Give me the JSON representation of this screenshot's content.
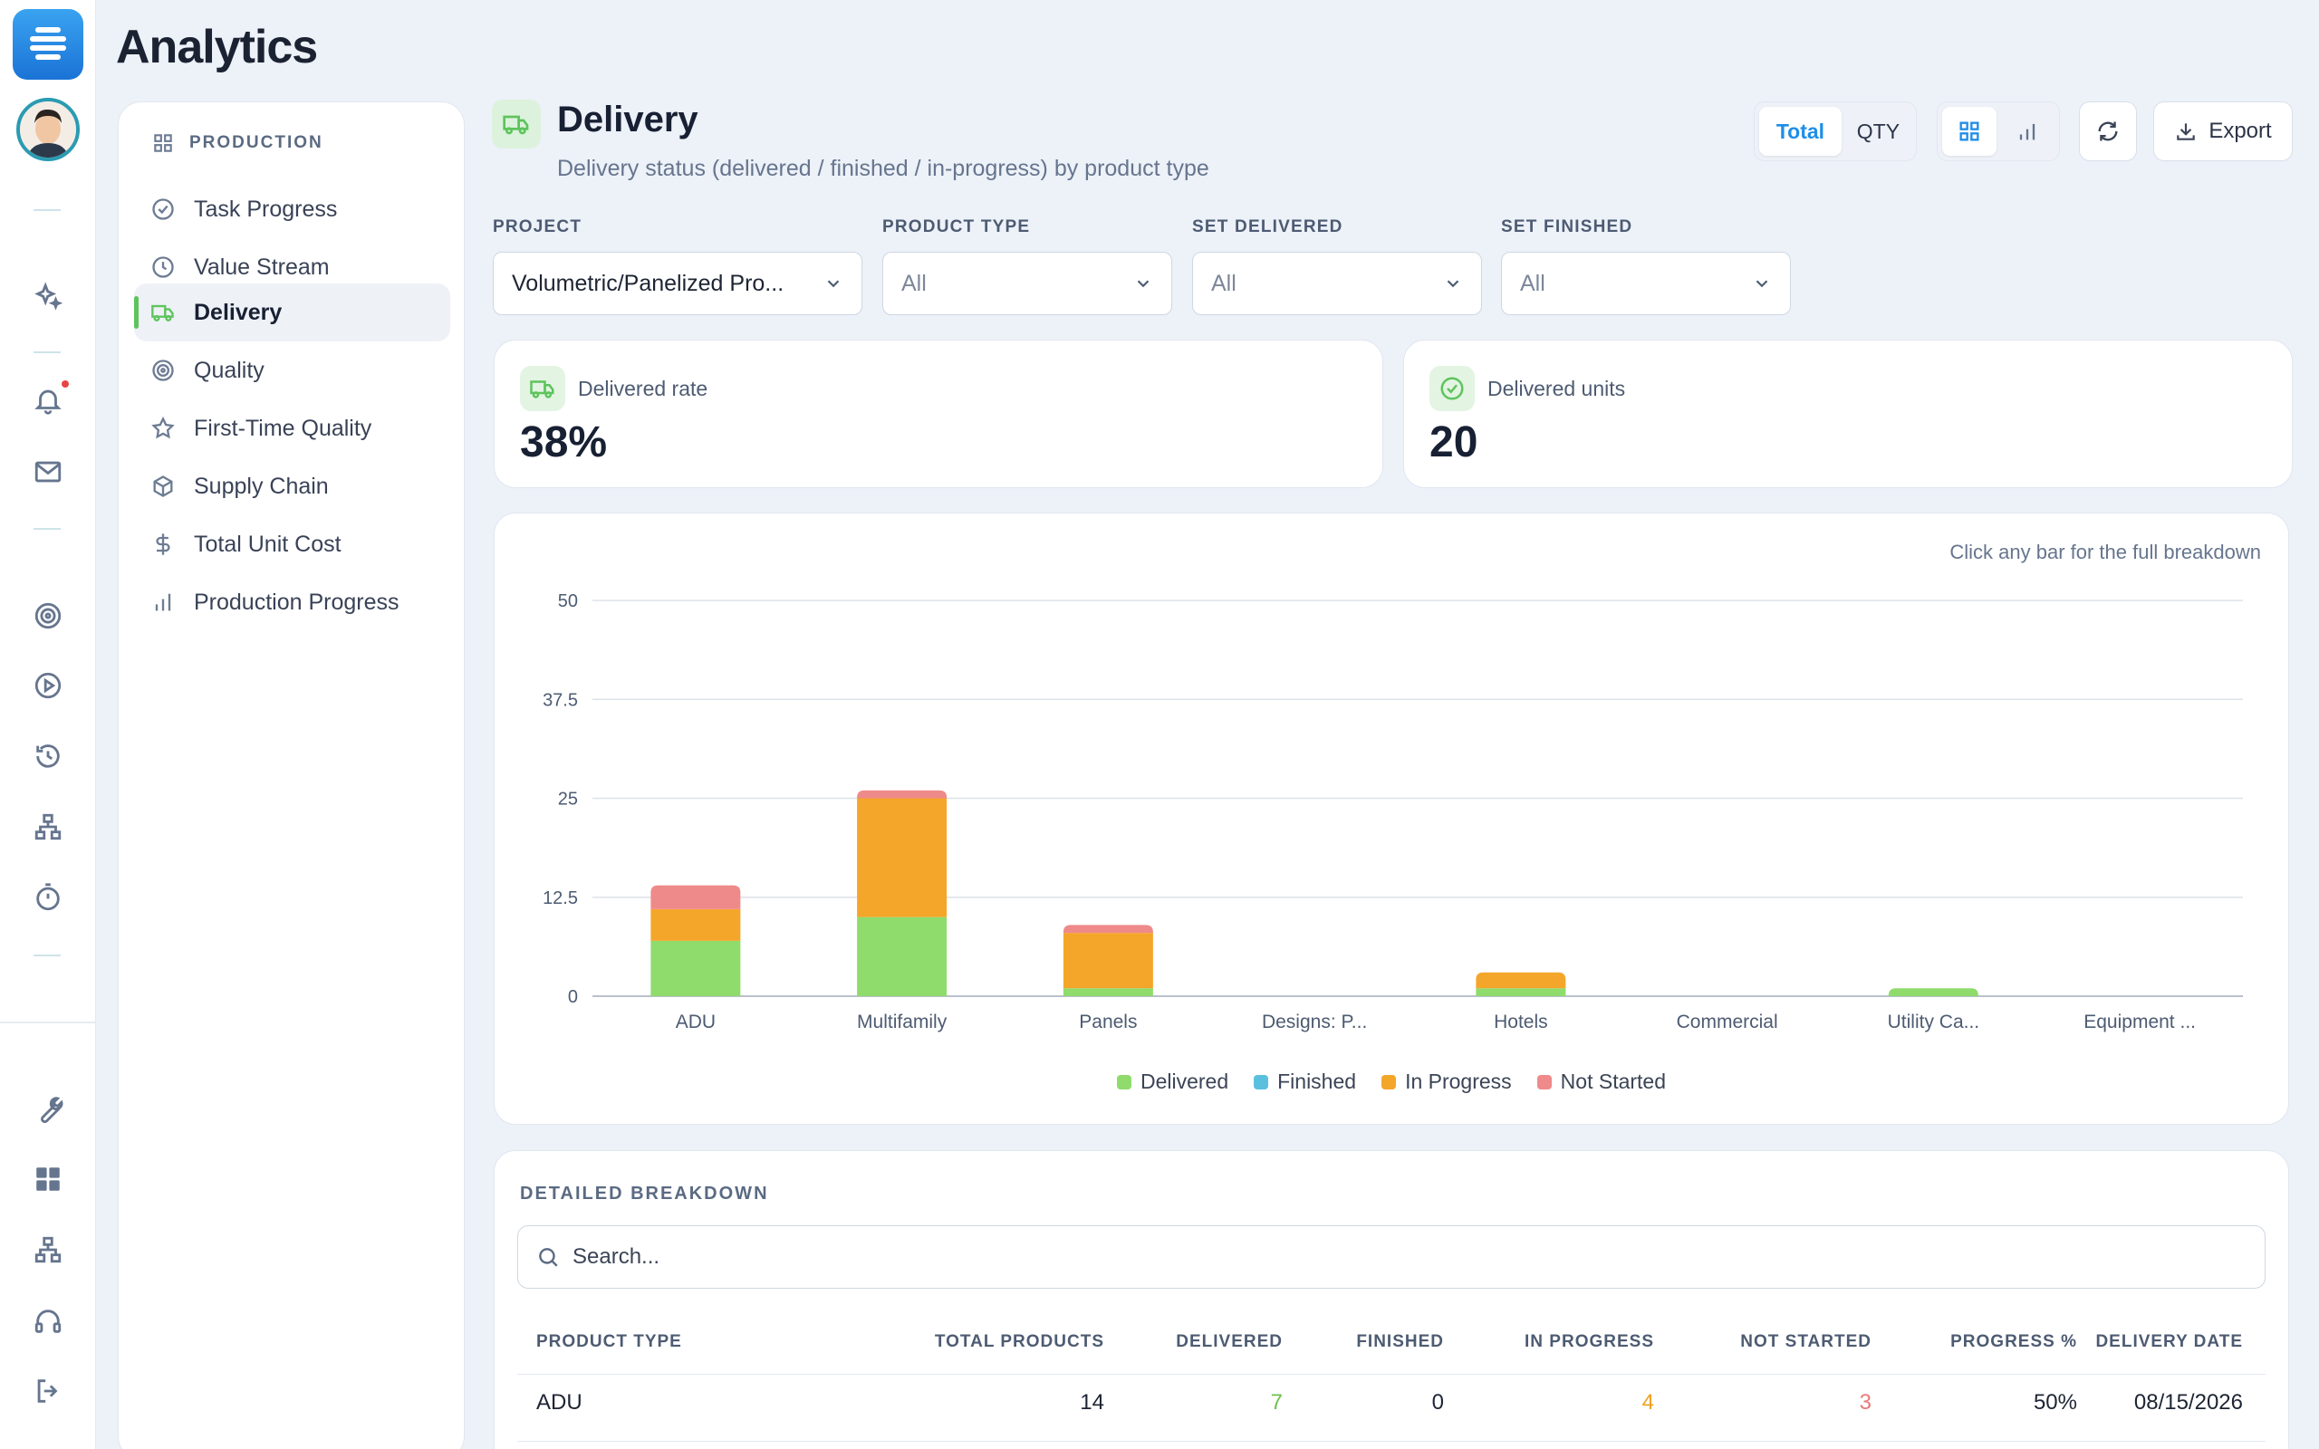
{
  "app": {
    "title": "Analytics"
  },
  "sidebar": {
    "section": "PRODUCTION",
    "items": [
      {
        "label": "Task Progress",
        "icon": "check-circle-icon"
      },
      {
        "label": "Value Stream",
        "icon": "clock-icon"
      },
      {
        "label": "Delivery",
        "icon": "truck-icon",
        "active": true
      },
      {
        "label": "Quality",
        "icon": "target-icon"
      },
      {
        "label": "First-Time Quality",
        "icon": "star-icon"
      },
      {
        "label": "Supply Chain",
        "icon": "box-icon"
      },
      {
        "label": "Total Unit Cost",
        "icon": "dollar-icon"
      },
      {
        "label": "Production Progress",
        "icon": "bar-chart-icon"
      }
    ]
  },
  "header": {
    "title": "Delivery",
    "subtitle": "Delivery status (delivered / finished / in-progress) by product type",
    "toggle": {
      "total": "Total",
      "qty": "QTY",
      "selected": "Total"
    },
    "export_label": "Export"
  },
  "filters": [
    {
      "label": "PROJECT",
      "value": "Volumetric/Panelized Pro..."
    },
    {
      "label": "PRODUCT TYPE",
      "value": "All"
    },
    {
      "label": "SET DELIVERED",
      "value": "All"
    },
    {
      "label": "SET FINISHED",
      "value": "All"
    }
  ],
  "kpis": {
    "rate": {
      "label": "Delivered rate",
      "value": "38%"
    },
    "units": {
      "label": "Delivered units",
      "value": "20"
    }
  },
  "colors": {
    "delivered": "#8fdb6c",
    "finished": "#5bc0de",
    "in_progress": "#f4a62a",
    "not_started": "#ef8a8a",
    "accent": "#1e8ee8"
  },
  "chart_hint": "Click any bar for the full breakdown",
  "chart_data": {
    "type": "bar",
    "stacked": true,
    "categories": [
      "ADU",
      "Multifamily",
      "Panels",
      "Designs: P...",
      "Hotels",
      "Commercial",
      "Utility Ca...",
      "Equipment ..."
    ],
    "series": [
      {
        "name": "Delivered",
        "values": [
          7,
          10,
          1,
          0,
          1,
          0,
          1,
          0
        ]
      },
      {
        "name": "Finished",
        "values": [
          0,
          0,
          0,
          0,
          0,
          0,
          0,
          0
        ]
      },
      {
        "name": "In Progress",
        "values": [
          4,
          15,
          7,
          0,
          2,
          0,
          0,
          0
        ]
      },
      {
        "name": "Not Started",
        "values": [
          3,
          1,
          1,
          0,
          0,
          0,
          0,
          0
        ]
      }
    ],
    "yticks": [
      "0",
      "12.5",
      "25",
      "37.5",
      "50"
    ],
    "ylim": [
      0,
      50
    ],
    "grid": true,
    "legend": "bottom-center"
  },
  "table": {
    "title": "DETAILED BREAKDOWN",
    "search_placeholder": "Search...",
    "columns": [
      "PRODUCT TYPE",
      "TOTAL PRODUCTS",
      "DELIVERED",
      "FINISHED",
      "IN PROGRESS",
      "NOT STARTED",
      "PROGRESS %",
      "DELIVERY DATE"
    ],
    "rows": [
      {
        "product_type": "ADU",
        "total": "14",
        "delivered": "7",
        "finished": "0",
        "in_progress": "4",
        "not_started": "3",
        "progress": "50%",
        "delivery_date": "08/15/2026"
      }
    ]
  }
}
